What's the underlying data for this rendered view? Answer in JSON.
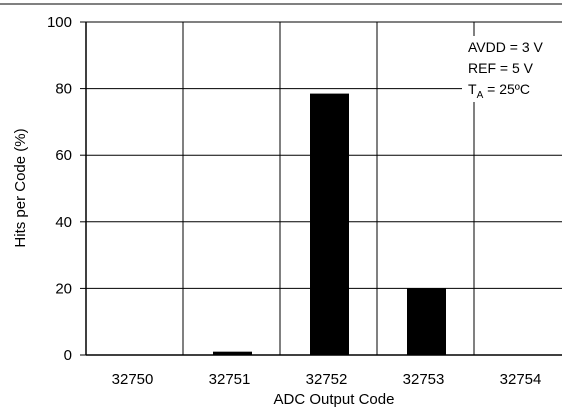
{
  "chart_data": {
    "type": "bar",
    "categories": [
      "32750",
      "32751",
      "32752",
      "32753",
      "32754"
    ],
    "values": [
      0,
      1,
      78.5,
      20,
      0
    ],
    "xlabel": "ADC Output Code",
    "ylabel": "Hits per Code (%)",
    "ylim": [
      0,
      100
    ],
    "yticks": [
      "0",
      "20",
      "40",
      "60",
      "80",
      "100"
    ],
    "grid": true,
    "bar_color": "#000000",
    "annotation": {
      "line1": "AVDD = 3 V",
      "line2": "REF = 5 V",
      "line3_prefix": "T",
      "line3_sub": "A",
      "line3_suffix": " = 25ºC"
    }
  }
}
